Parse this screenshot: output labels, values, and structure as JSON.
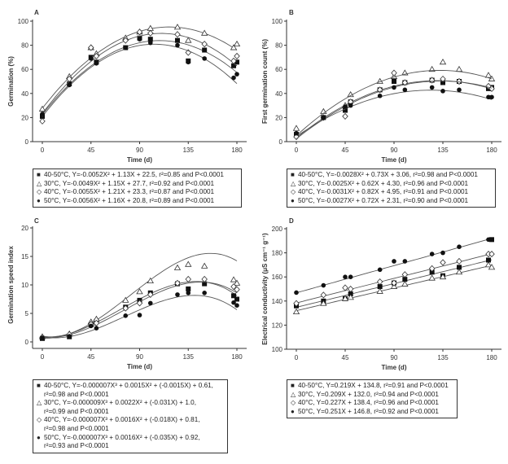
{
  "chart_data": [
    {
      "panel": "A",
      "type": "scatter",
      "ylabel": "Germination (%)",
      "xlabel": "Time (d)",
      "xlim": [
        0,
        180
      ],
      "ylim": [
        0,
        100
      ],
      "xticks": [
        "0",
        "45",
        "90",
        "135",
        "180"
      ],
      "yticks": [
        "0",
        "20",
        "40",
        "60",
        "80",
        "100"
      ],
      "x": [
        0,
        25,
        45,
        50,
        77,
        90,
        100,
        125,
        135,
        150,
        177,
        180
      ],
      "series": [
        {
          "name": "40-50°C",
          "marker": "square",
          "fit": [
            -0.0052,
            1.13,
            22.5
          ],
          "values": [
            21,
            48,
            70,
            66,
            78,
            86,
            85,
            84,
            67,
            76,
            63,
            66
          ],
          "legend": "40-50°C, Y=-0.0052X² + 1.13X + 22.5, r²=0.85 and P<0.0001"
        },
        {
          "name": "30°C",
          "marker": "triangle",
          "fit": [
            -0.0049,
            1.15,
            27.7
          ],
          "values": [
            27,
            54,
            78,
            73,
            86,
            91,
            94,
            95,
            84,
            90,
            78,
            81
          ],
          "legend": "30°C, Y=-0.0049X² + 1.15X + 27.7, r²=0.92 and P<0.0001"
        },
        {
          "name": "40°C",
          "marker": "diamond",
          "fit": [
            -0.0055,
            1.21,
            23.3
          ],
          "values": [
            17,
            52,
            78,
            71,
            84,
            91,
            90,
            89,
            74,
            81,
            67,
            71
          ],
          "legend": "40°C, Y=-0.0055X² + 1.21X + 23.3, r²=0.87 and P<0.0001"
        },
        {
          "name": "50°C",
          "marker": "circle",
          "fit": [
            -0.0056,
            1.16,
            20.8
          ],
          "values": [
            23,
            47,
            69,
            65,
            78,
            85,
            82,
            80,
            66,
            69,
            53,
            56
          ],
          "legend": "50°C, Y=-0.0056X² + 1.16X + 20.8, r²=0.89 and P<0.0001"
        }
      ]
    },
    {
      "panel": "B",
      "type": "scatter",
      "ylabel": "First germination count (%)",
      "xlabel": "Time (d)",
      "xlim": [
        0,
        180
      ],
      "ylim": [
        0,
        100
      ],
      "xticks": [
        "0",
        "45",
        "90",
        "135",
        "180"
      ],
      "yticks": [
        "0",
        "20",
        "40",
        "60",
        "80",
        "100"
      ],
      "x": [
        0,
        25,
        45,
        50,
        77,
        90,
        100,
        125,
        135,
        150,
        177,
        180
      ],
      "series": [
        {
          "name": "40-50°C",
          "marker": "square",
          "fit": [
            -0.0028,
            0.73,
            3.06
          ],
          "values": [
            6,
            20,
            26,
            33,
            43,
            50,
            49,
            51,
            49,
            50,
            44,
            45
          ],
          "legend": "40-50°C, Y=-0.0028X² + 0.73X + 3.06, r²=0.98 and P<0.0001"
        },
        {
          "name": "30°C",
          "marker": "triangle",
          "fit": [
            -0.0025,
            0.62,
            4.3
          ],
          "values": [
            11,
            25,
            30,
            39,
            50,
            54,
            57,
            60,
            66,
            60,
            55,
            52
          ],
          "legend": "30°C, Y=-0.0025X² + 0.62X + 4.30, r²=0.96 and P<0.0001"
        },
        {
          "name": "40°C",
          "marker": "diamond",
          "fit": [
            -0.0031,
            0.82,
            4.95
          ],
          "values": [
            4,
            20,
            21,
            33,
            43,
            57,
            49,
            51,
            52,
            50,
            46,
            44
          ],
          "legend": "40°C, Y=-0.0031X² + 0.82X + 4.95, r²=0.91 and P<0.0001"
        },
        {
          "name": "50°C",
          "marker": "circle",
          "fit": [
            -0.0027,
            0.72,
            2.31
          ],
          "values": [
            7,
            20,
            29,
            30,
            38,
            45,
            43,
            45,
            42,
            43,
            37,
            37
          ],
          "legend": "50°C, Y=-0.0027X² + 0.72X + 2.31, r²=0.90 and P<0.0001"
        }
      ]
    },
    {
      "panel": "C",
      "type": "scatter",
      "ylabel": "Germination speed index",
      "xlabel": "Time (d)",
      "xlim": [
        0,
        180
      ],
      "ylim": [
        0,
        20
      ],
      "xticks": [
        "0",
        "45",
        "90",
        "135",
        "180"
      ],
      "yticks": [
        "0",
        "5",
        "10",
        "15",
        "20"
      ],
      "x": [
        0,
        25,
        45,
        50,
        77,
        90,
        100,
        125,
        135,
        150,
        177,
        180
      ],
      "series": [
        {
          "name": "40-50°C",
          "marker": "square",
          "fit": [
            -7e-06,
            0.0015,
            -0.0015,
            0.61
          ],
          "values": [
            0.6,
            0.9,
            3.0,
            3.6,
            6.1,
            7.3,
            8.6,
            10.2,
            9.3,
            10.2,
            8.1,
            7.5
          ],
          "legend": "40-50°C, Y=-0.000007X³ + 0.0015X² + (-0.0015X) + 0.61,",
          "legend2": "r²=0.98 and P<0.0001"
        },
        {
          "name": "30°C",
          "marker": "triangle",
          "fit": [
            -9e-06,
            0.0022,
            -0.031,
            1.0
          ],
          "values": [
            0.9,
            1.4,
            3.5,
            4.0,
            7.3,
            8.8,
            10.7,
            13.0,
            13.6,
            13.3,
            10.9,
            10.3
          ],
          "legend": "30°C, Y=-0.000009X³ + 0.0022X² + (-0.031X) + 1.0,",
          "legend2": "r²=0.99 and P<0.0001"
        },
        {
          "name": "40°C",
          "marker": "diamond",
          "fit": [
            -7e-06,
            0.0016,
            -0.018,
            0.81
          ],
          "values": [
            0.8,
            1.3,
            3.1,
            3.3,
            5.9,
            6.8,
            8.3,
            10.3,
            11.0,
            11.0,
            9.7,
            9.2
          ],
          "legend": "40°C, Y=-0.000007X³ + 0.0016X² + (-0.018X) + 0.81,",
          "legend2": "r²=0.98 and P<0.0001"
        },
        {
          "name": "50°C",
          "marker": "circle",
          "fit": [
            -7e-06,
            0.0016,
            -0.035,
            0.92
          ],
          "values": [
            0.7,
            1.0,
            2.8,
            2.4,
            4.6,
            4.7,
            6.8,
            8.3,
            8.6,
            8.6,
            6.9,
            6.4
          ],
          "legend": "50°C, Y=-0.000007X³ + 0.0016X² + (-0.035X) + 0.92,",
          "legend2": "r²=0.93 and P<0.0001"
        }
      ]
    },
    {
      "panel": "D",
      "type": "scatter",
      "ylabel": "Electrical conductivity (μS cm⁻¹ g⁻¹)",
      "xlabel": "Time (d)",
      "xlim": [
        0,
        180
      ],
      "ylim": [
        100,
        200
      ],
      "xticks": [
        "0",
        "45",
        "90",
        "135",
        "180"
      ],
      "yticks": [
        "100",
        "120",
        "140",
        "160",
        "180",
        "200"
      ],
      "x": [
        0,
        25,
        45,
        50,
        77,
        90,
        100,
        125,
        135,
        150,
        177,
        180
      ],
      "series": [
        {
          "name": "40-50°C",
          "marker": "square",
          "fit": [
            0,
            0.219,
            134.8
          ],
          "values": [
            136,
            140,
            142,
            146,
            152,
            155,
            158,
            164,
            161,
            168,
            174,
            191
          ],
          "legend": "40-50°C, Y=0.219X + 134.8, r²=0.91 and P<0.0001"
        },
        {
          "name": "30°C",
          "marker": "triangle",
          "fit": [
            0,
            0.209,
            132.0
          ],
          "values": [
            131,
            138,
            142,
            143,
            148,
            152,
            154,
            159,
            160,
            164,
            170,
            168
          ],
          "legend": "30°C, Y=0.209X + 132.0, r²=0.94 and P<0.0001"
        },
        {
          "name": "40°C",
          "marker": "diamond",
          "fit": [
            0,
            0.227,
            138.4
          ],
          "values": [
            138,
            145,
            151,
            150,
            156,
            155,
            162,
            167,
            172,
            173,
            179,
            179
          ],
          "legend": "40°C, Y=0.227X + 138.4, r²=0.96 and P<0.0001"
        },
        {
          "name": "50°C",
          "marker": "circle",
          "fit": [
            0,
            0.251,
            146.8
          ],
          "values": [
            147,
            153,
            160,
            160,
            166,
            173,
            173,
            179,
            180,
            185,
            191,
            191
          ],
          "legend": "50°C, Y=0.251X + 146.8, r²=0.92 and P<0.0001"
        }
      ]
    }
  ]
}
